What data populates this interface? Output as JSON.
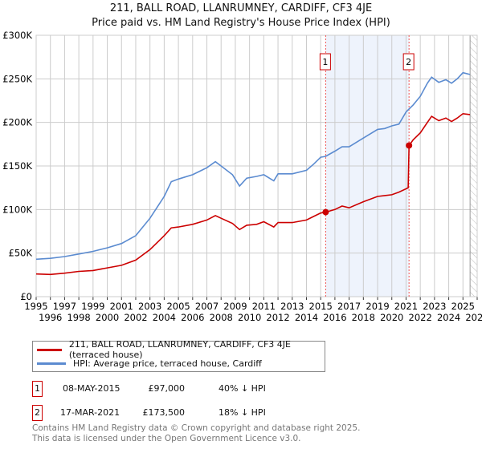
{
  "chart_data": {
    "type": "line",
    "title": "211, BALL ROAD, LLANRUMNEY, CARDIFF, CF3 4JE",
    "subtitle": "Price paid vs. HM Land Registry's House Price Index (HPI)",
    "xlim": [
      1995,
      2026
    ],
    "ylim": [
      0,
      300000
    ],
    "x_ticks": [
      "1995",
      "1996",
      "1997",
      "1998",
      "1999",
      "2000",
      "2001",
      "2002",
      "2003",
      "2004",
      "2005",
      "2006",
      "2007",
      "2008",
      "2009",
      "2010",
      "2011",
      "2012",
      "2013",
      "2014",
      "2015",
      "2016",
      "2017",
      "2018",
      "2019",
      "2020",
      "2021",
      "2022",
      "2023",
      "2024",
      "2025",
      "2026"
    ],
    "y_ticks": [
      {
        "v": 0,
        "label": "£0"
      },
      {
        "v": 50000,
        "label": "£50K"
      },
      {
        "v": 100000,
        "label": "£100K"
      },
      {
        "v": 150000,
        "label": "£150K"
      },
      {
        "v": 200000,
        "label": "£200K"
      },
      {
        "v": 250000,
        "label": "£250K"
      },
      {
        "v": 300000,
        "label": "£300K"
      }
    ],
    "grid": true,
    "shaded_period": [
      2015.35,
      2021.21
    ],
    "hatched_after": 2025.5,
    "series": [
      {
        "name": "211, BALL ROAD, LLANRUMNEY, CARDIFF, CF3 4JE (terraced house)",
        "color": "#cc0000",
        "x": [
          1995,
          1996,
          1997,
          1998,
          1999,
          2000,
          2001,
          2002,
          2003,
          2004,
          2004.5,
          2005,
          2006,
          2007,
          2007.6,
          2008,
          2008.8,
          2009.3,
          2009.8,
          2010.5,
          2011,
          2011.7,
          2012,
          2013,
          2014,
          2014.5,
          2015,
          2015.35,
          2016,
          2016.5,
          2017,
          2018,
          2019,
          2019.5,
          2020,
          2020.5,
          2021.15,
          2021.21,
          2021.5,
          2022,
          2022.5,
          2022.8,
          2023.3,
          2023.8,
          2024.2,
          2024.6,
          2025,
          2025.5
        ],
        "y": [
          26000,
          25500,
          27000,
          29000,
          30000,
          33000,
          36000,
          42000,
          54000,
          70000,
          79000,
          80000,
          83000,
          88000,
          93000,
          90000,
          84000,
          77000,
          82000,
          83000,
          86000,
          80000,
          85000,
          85000,
          88000,
          92000,
          96000,
          97000,
          100000,
          104000,
          102000,
          109000,
          115000,
          116000,
          117000,
          120000,
          125000,
          173500,
          180000,
          188000,
          200000,
          207000,
          202000,
          205000,
          201000,
          205000,
          210000,
          209000
        ]
      },
      {
        "name": "HPI: Average price, terraced house, Cardiff",
        "color": "#5b8bd0",
        "x": [
          1995,
          1996,
          1997,
          1998,
          1999,
          2000,
          2001,
          2002,
          2003,
          2004,
          2004.5,
          2005,
          2006,
          2007,
          2007.6,
          2008,
          2008.8,
          2009.3,
          2009.8,
          2010.5,
          2011,
          2011.7,
          2012,
          2013,
          2014,
          2014.5,
          2015,
          2015.35,
          2016,
          2016.5,
          2017,
          2018,
          2019,
          2019.5,
          2020,
          2020.5,
          2021,
          2021.5,
          2022,
          2022.5,
          2022.8,
          2023.3,
          2023.8,
          2024.2,
          2024.6,
          2025,
          2025.5
        ],
        "y": [
          43000,
          44000,
          46000,
          49000,
          52000,
          56000,
          61000,
          70000,
          90000,
          115000,
          132000,
          135000,
          140000,
          148000,
          155000,
          150000,
          140000,
          127000,
          136000,
          138000,
          140000,
          133000,
          141000,
          141000,
          145000,
          152000,
          160000,
          161000,
          167000,
          172000,
          172000,
          182000,
          192000,
          193000,
          196000,
          198000,
          212000,
          220000,
          230000,
          245000,
          252000,
          246000,
          249000,
          245000,
          250000,
          257000,
          255000
        ]
      }
    ],
    "annotations": [
      {
        "label": "1",
        "x": 2015.35,
        "y": 97000
      },
      {
        "label": "2",
        "x": 2021.21,
        "y": 173500
      }
    ]
  },
  "legend": {
    "red": "211, BALL ROAD, LLANRUMNEY, CARDIFF, CF3 4JE (terraced house)",
    "blue": "HPI: Average price, terraced house, Cardiff"
  },
  "sales": [
    {
      "num": "1",
      "date": "08-MAY-2015",
      "price": "£97,000",
      "hpi": "40% ↓ HPI"
    },
    {
      "num": "2",
      "date": "17-MAR-2021",
      "price": "£173,500",
      "hpi": "18% ↓ HPI"
    }
  ],
  "footer": {
    "line1": "Contains HM Land Registry data © Crown copyright and database right 2025.",
    "line2": "This data is licensed under the Open Government Licence v3.0."
  }
}
